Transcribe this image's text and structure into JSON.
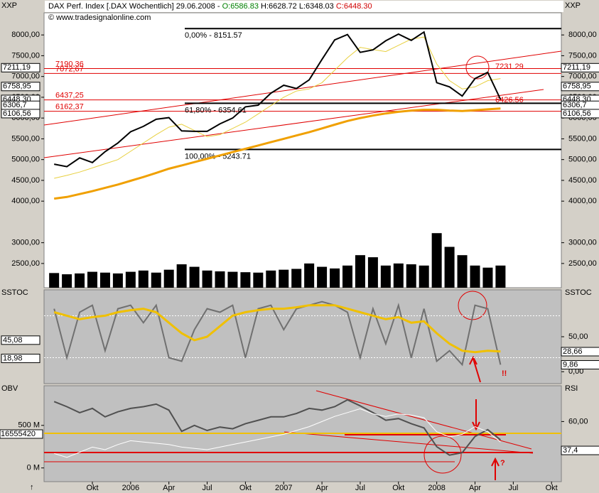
{
  "header": {
    "segments": [
      {
        "text": "DAX Perf. Index [.DAX  Wöchentlich] 29.06.2008 - ",
        "color": "#000000"
      },
      {
        "text": "O:6586.83",
        "color": "#008000"
      },
      {
        "text": " H:6628.72",
        "color": "#000000"
      },
      {
        "text": " L:6348.03",
        "color": "#000000"
      },
      {
        "text": " C:6448.30",
        "color": "#d00000"
      }
    ],
    "copyright": "© www.tradesignalonline.com"
  },
  "categories": [
    null,
    null,
    null,
    "Okt",
    null,
    null,
    "2006",
    null,
    null,
    "Apr",
    null,
    null,
    "Jul",
    null,
    null,
    "Okt",
    null,
    null,
    "2007",
    null,
    null,
    "Apr",
    null,
    null,
    "Jul",
    null,
    null,
    "Okt",
    null,
    null,
    "2008",
    null,
    null,
    "Apr",
    null,
    null,
    "Jul",
    null,
    null,
    "Okt"
  ],
  "chart_data": [
    {
      "type": "line",
      "title": "XXP",
      "y2_title": "XXP",
      "ylim": [
        1917,
        8533
      ],
      "y2lim": [
        1917,
        8533
      ],
      "yticks": [
        {
          "value": 8000,
          "label": "8000,00"
        },
        {
          "value": 7500,
          "label": "7500,00"
        },
        {
          "value": 7000,
          "label": "7000,00"
        },
        {
          "value": 6500,
          "label": "6500,00"
        },
        {
          "value": 6000,
          "label": "6000,00"
        },
        {
          "value": 5500,
          "label": "5500,00"
        },
        {
          "value": 5000,
          "label": "5000,00"
        },
        {
          "value": 4500,
          "label": "4500,00"
        },
        {
          "value": 4000,
          "label": "4000,00"
        },
        {
          "value": 3000,
          "label": "3000,00"
        },
        {
          "value": 2500,
          "label": "2500,00"
        }
      ],
      "price_markers": [
        {
          "value": 7211.19,
          "label": "7211,19"
        },
        {
          "value": 6758.95,
          "label": "6758,95"
        },
        {
          "value": 6448.3,
          "label": "6448,30"
        },
        {
          "value": 6306.7,
          "label": "6306,7"
        },
        {
          "value": 6106.56,
          "label": "6106,56"
        }
      ],
      "levels": [
        {
          "value": 7190.36,
          "label": "7190,36"
        },
        {
          "value": 7072.67,
          "label": "7072,67"
        },
        {
          "value": 6437.25,
          "label": "6437,25"
        },
        {
          "value": 6162.37,
          "label": "6162,37"
        }
      ],
      "level_color": "#e00000",
      "fib_levels": [
        {
          "value": 8151.57,
          "label": "0,00% - 8151.57"
        },
        {
          "value": 6354.61,
          "label": "61,80% - 6354.61"
        },
        {
          "value": 5243.71,
          "label": "100,00% - 5243.71"
        }
      ],
      "annotations": [
        {
          "value": 7231.29,
          "label": "7231.29"
        },
        {
          "value": 6426.56,
          "label": "6426.56"
        }
      ],
      "series": [
        {
          "type": "bar",
          "color": "#000000",
          "values": [
            2270,
            2240,
            2260,
            2300,
            2280,
            2260,
            2300,
            2330,
            2280,
            2350,
            2480,
            2420,
            2330,
            2310,
            2300,
            2290,
            2280,
            2330,
            2350,
            2370,
            2500,
            2420,
            2380,
            2450,
            2700,
            2650,
            2450,
            2500,
            2480,
            2450,
            3230,
            2900,
            2700,
            2450,
            2400,
            2450,
            null,
            null,
            null,
            null
          ]
        },
        {
          "type": "line",
          "color": "#f0a000",
          "width": 3,
          "values": [
            4060,
            4100,
            4170,
            4240,
            4320,
            4400,
            4490,
            4580,
            4680,
            4780,
            4860,
            4940,
            5020,
            5100,
            5180,
            5260,
            5340,
            5420,
            5500,
            5580,
            5660,
            5750,
            5840,
            5930,
            6000,
            6060,
            6110,
            6150,
            6180,
            6200,
            6200,
            6180,
            6170,
            6190,
            6210,
            6230,
            null,
            null,
            null,
            null
          ]
        },
        {
          "type": "line",
          "color": "#e8d040",
          "width": 1,
          "values": [
            4550,
            4620,
            4700,
            4800,
            4900,
            5000,
            5200,
            5400,
            5600,
            5780,
            5850,
            5700,
            5550,
            5600,
            5750,
            5900,
            6100,
            6300,
            6500,
            6650,
            6700,
            6850,
            7150,
            7450,
            7700,
            7650,
            7600,
            7750,
            7900,
            7950,
            7300,
            6900,
            6700,
            6750,
            6900,
            6950,
            null,
            null,
            null,
            null
          ]
        },
        {
          "type": "line",
          "color": "#000000",
          "width": 2,
          "values": [
            4890,
            4830,
            5040,
            4930,
            5190,
            5400,
            5670,
            5800,
            5970,
            6010,
            5690,
            5680,
            5680,
            5860,
            6000,
            6270,
            6310,
            6600,
            6790,
            6710,
            6920,
            7410,
            7880,
            8010,
            7580,
            7640,
            7860,
            8020,
            7870,
            8070,
            6850,
            6750,
            6530,
            6950,
            7100,
            6448.3,
            null,
            null,
            null,
            null
          ]
        }
      ]
    },
    {
      "type": "line",
      "title": "SSTOC",
      "y2_title": "SSTOC",
      "ylim": [
        -17,
        117
      ],
      "y2lim": [
        -17,
        117
      ],
      "yticks": [],
      "y2ticks": [
        {
          "value": 50,
          "label": "50,00"
        },
        {
          "value": 0,
          "label": "0,00"
        }
      ],
      "price_markers": [
        {
          "value": 45.08,
          "label": "45,08"
        },
        {
          "value": 18.98,
          "label": "18,98"
        }
      ],
      "price_markers_right": [
        {
          "value": 28.66,
          "label": "28,66"
        },
        {
          "value": 9.86,
          "label": "9,86"
        }
      ],
      "reference_lines": [
        80,
        20
      ],
      "annotations_text": [
        "!!"
      ],
      "series": [
        {
          "type": "line",
          "color": "#707070",
          "width": 2,
          "values": [
            90,
            20,
            85,
            95,
            30,
            90,
            95,
            70,
            95,
            20,
            15,
            60,
            90,
            85,
            95,
            20,
            90,
            95,
            60,
            90,
            95,
            100,
            95,
            85,
            20,
            90,
            40,
            95,
            20,
            90,
            15,
            30,
            10,
            95,
            90,
            10,
            null,
            null,
            null,
            null
          ]
        },
        {
          "type": "line",
          "color": "#f0c000",
          "width": 3,
          "values": [
            85,
            80,
            75,
            78,
            80,
            85,
            88,
            90,
            85,
            70,
            55,
            45,
            50,
            65,
            80,
            85,
            88,
            90,
            90,
            92,
            95,
            95,
            95,
            90,
            85,
            80,
            75,
            78,
            70,
            72,
            55,
            40,
            30,
            28,
            30,
            29,
            null,
            null,
            null,
            null
          ]
        }
      ]
    },
    {
      "type": "line",
      "title": "OBV",
      "y2_title": "RSI",
      "ylim": [
        -161,
        966
      ],
      "y2lim": [
        13,
        88
      ],
      "yticks": [
        {
          "value": 500,
          "label": "500 M"
        },
        {
          "value": 0,
          "label": "0 M"
        }
      ],
      "y2ticks": [
        {
          "value": 60,
          "label": "60,00"
        }
      ],
      "current_label": "16555420",
      "price_markers_right2": [
        {
          "value": 37.4,
          "label": "37,4"
        }
      ],
      "reference_lines": [
        407
      ],
      "annotations_text": [
        "?"
      ],
      "series": [
        {
          "type": "line",
          "color": "#505050",
          "width": 2,
          "values": [
            780,
            720,
            650,
            700,
            600,
            660,
            700,
            720,
            750,
            680,
            430,
            500,
            440,
            480,
            460,
            520,
            560,
            600,
            600,
            640,
            700,
            680,
            720,
            800,
            730,
            650,
            560,
            580,
            520,
            470,
            250,
            150,
            180,
            370,
            450,
            330,
            null,
            null,
            null,
            null
          ]
        },
        {
          "type": "line",
          "axis": "y2",
          "color": "#ffffff",
          "width": 1,
          "values": [
            35,
            32,
            36,
            40,
            38,
            42,
            45,
            44,
            43,
            42,
            40,
            39,
            38,
            40,
            42,
            44,
            46,
            48,
            50,
            53,
            56,
            60,
            64,
            67,
            70,
            66,
            64,
            66,
            65,
            63,
            52,
            48,
            50,
            56,
            52,
            44,
            null,
            null,
            null,
            null
          ]
        }
      ]
    }
  ]
}
